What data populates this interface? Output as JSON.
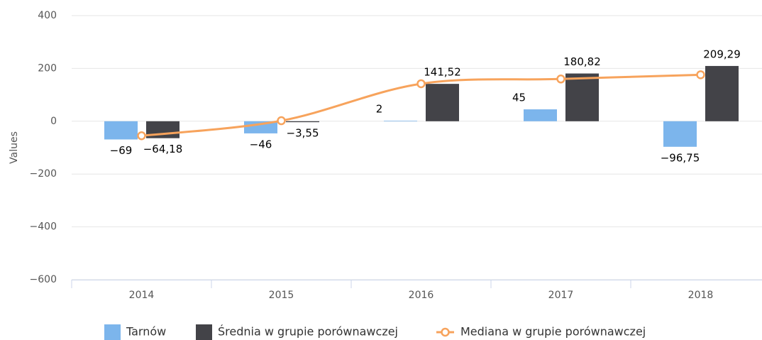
{
  "chart_data": {
    "type": "combo",
    "y_axis_label": "Values",
    "categories": [
      "2014",
      "2015",
      "2016",
      "2017",
      "2018"
    ],
    "series": [
      {
        "name": "Tarnów",
        "type": "bar",
        "color": "#7cb5ec",
        "values": [
          -69,
          -46,
          2,
          45,
          -96.75
        ],
        "value_labels": [
          "−69",
          "−46",
          "2",
          "45",
          "−96,75"
        ]
      },
      {
        "name": "Średnia w grupie porównawczej",
        "type": "bar",
        "color": "#434348",
        "values": [
          -64.18,
          -3.55,
          141.52,
          180.82,
          209.29
        ],
        "value_labels": [
          "−64,18",
          "−3,55",
          "141,52",
          "180,82",
          "209,29"
        ]
      },
      {
        "name": "Mediana w grupie porównawczej",
        "type": "line",
        "color": "#f7a35c",
        "values": [
          -55,
          2,
          142,
          160,
          176
        ]
      }
    ],
    "ylim": [
      -600,
      400
    ],
    "yticks": [
      {
        "value": -600,
        "label": "−600"
      },
      {
        "value": -400,
        "label": "−400"
      },
      {
        "value": -200,
        "label": "−200"
      },
      0,
      200,
      400
    ],
    "grid": true,
    "legend": "bottom"
  }
}
